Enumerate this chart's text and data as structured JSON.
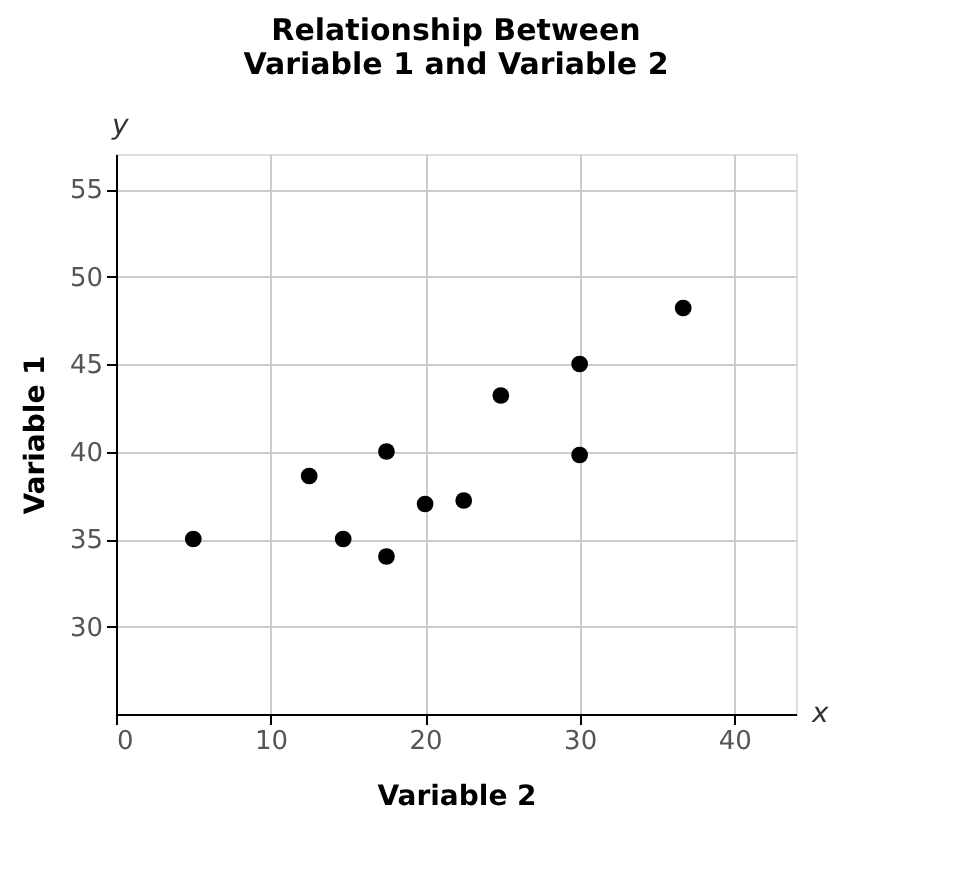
{
  "chart_data": {
    "type": "scatter",
    "title": "Relationship Between\nVariable 1 and Variable 2",
    "xlabel": "Variable 2",
    "ylabel": "Variable 1",
    "x": [
      5,
      12.5,
      14.7,
      17.5,
      17.5,
      20,
      22.5,
      24.9,
      30,
      30,
      36.7
    ],
    "series": [
      {
        "color": "#000000",
        "values": [
          35,
          38.6,
          35,
          34,
          40,
          37,
          37.2,
          43.2,
          45,
          39.8,
          48.2
        ]
      }
    ],
    "xlim": [
      0,
      44
    ],
    "xticks": [
      0,
      10,
      20,
      30,
      40
    ],
    "ylim": [
      25,
      57
    ],
    "yticks": [
      30,
      35,
      40,
      45,
      50,
      55
    ],
    "grid": true,
    "marker": "circle",
    "annotations": [
      "y",
      "x"
    ]
  }
}
